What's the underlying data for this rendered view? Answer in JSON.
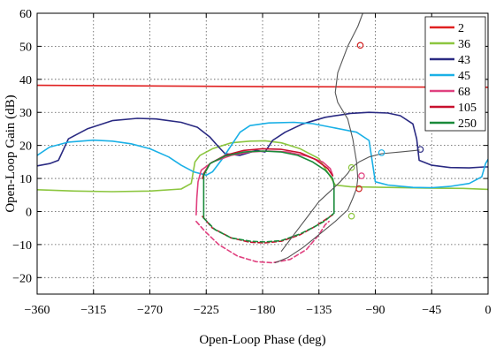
{
  "chart_data": {
    "type": "line",
    "title": "",
    "xlabel": "Open-Loop Phase (deg)",
    "ylabel": "Open-Loop Gain (dB)",
    "xlim": [
      -360,
      0
    ],
    "ylim": [
      -25,
      60
    ],
    "xticks": [
      -360,
      -315,
      -270,
      -225,
      -180,
      -135,
      -90,
      -45,
      0
    ],
    "yticks": [
      -20,
      -10,
      0,
      10,
      20,
      30,
      40,
      50,
      60
    ],
    "xtick_labels": [
      "−360",
      "−315",
      "−270",
      "−225",
      "−180",
      "−135",
      "−90",
      "−45",
      "0"
    ],
    "ytick_labels": [
      "−20",
      "−10",
      "0",
      "10",
      "20",
      "30",
      "40",
      "50",
      "60"
    ],
    "grid": true,
    "legend": {
      "position": "top-right"
    },
    "series": [
      {
        "name": "2",
        "color": "#e02020",
        "width": 1.6,
        "segments": [
          [
            [
              -360,
              38.2
            ],
            [
              -270,
              38.0
            ],
            [
              -180,
              37.8
            ],
            [
              -90,
              37.7
            ],
            [
              0,
              37.6
            ]
          ]
        ]
      },
      {
        "name": "36",
        "color": "#8cc63f",
        "width": 1.6,
        "segments": [
          [
            [
              -360,
              6.6
            ],
            [
              -330,
              6.2
            ],
            [
              -300,
              6.0
            ],
            [
              -270,
              6.2
            ],
            [
              -245,
              6.8
            ],
            [
              -237,
              8.5
            ],
            [
              -234,
              15.0
            ],
            [
              -230,
              17.0
            ],
            [
              -220,
              19.0
            ],
            [
              -205,
              20.8
            ],
            [
              -190,
              21.3
            ],
            [
              -178,
              21.4
            ],
            [
              -165,
              20.8
            ],
            [
              -150,
              19.0
            ],
            [
              -135,
              16.0
            ],
            [
              -125,
              10.0
            ],
            [
              -122,
              8.0
            ],
            [
              -110,
              7.5
            ],
            [
              -80,
              7.3
            ],
            [
              -50,
              7.1
            ],
            [
              -20,
              7.0
            ],
            [
              0,
              6.7
            ]
          ]
        ]
      },
      {
        "name": "43",
        "color": "#2a2a82",
        "width": 1.6,
        "segments": [
          [
            [
              -360,
              13.8
            ],
            [
              -350,
              14.5
            ],
            [
              -343,
              15.5
            ],
            [
              -335,
              22.0
            ],
            [
              -320,
              25.0
            ],
            [
              -300,
              27.5
            ],
            [
              -280,
              28.2
            ],
            [
              -265,
              28.0
            ],
            [
              -245,
              27.0
            ],
            [
              -232,
              25.5
            ],
            [
              -222,
              22.5
            ],
            [
              -215,
              19.5
            ],
            [
              -210,
              17.5
            ],
            [
              -198,
              17.0
            ],
            [
              -185,
              18.5
            ],
            [
              -178,
              18.0
            ],
            [
              -172,
              21.5
            ],
            [
              -162,
              24.0
            ],
            [
              -148,
              26.5
            ],
            [
              -130,
              28.5
            ],
            [
              -110,
              29.7
            ],
            [
              -95,
              30.0
            ],
            [
              -80,
              29.8
            ],
            [
              -70,
              29.0
            ],
            [
              -60,
              26.5
            ],
            [
              -57,
              22.0
            ],
            [
              -55,
              15.5
            ],
            [
              -45,
              14.0
            ],
            [
              -30,
              13.3
            ],
            [
              -15,
              13.2
            ],
            [
              -3,
              13.5
            ],
            [
              0,
              13.5
            ]
          ]
        ]
      },
      {
        "name": "45",
        "color": "#1ab0e6",
        "width": 1.6,
        "segments": [
          [
            [
              -360,
              17.0
            ],
            [
              -350,
              19.5
            ],
            [
              -335,
              21.0
            ],
            [
              -315,
              21.6
            ],
            [
              -300,
              21.3
            ],
            [
              -285,
              20.5
            ],
            [
              -270,
              19.0
            ],
            [
              -255,
              16.5
            ],
            [
              -245,
              14.0
            ],
            [
              -235,
              12.0
            ],
            [
              -225,
              11.0
            ],
            [
              -220,
              12.0
            ],
            [
              -212,
              16.0
            ],
            [
              -205,
              20.0
            ],
            [
              -198,
              24.0
            ],
            [
              -190,
              26.0
            ],
            [
              -175,
              26.8
            ],
            [
              -155,
              27.0
            ],
            [
              -140,
              26.6
            ],
            [
              -125,
              25.5
            ],
            [
              -105,
              24.0
            ],
            [
              -95,
              21.5
            ],
            [
              -90,
              9.0
            ],
            [
              -80,
              8.0
            ],
            [
              -60,
              7.3
            ],
            [
              -45,
              7.2
            ],
            [
              -30,
              7.6
            ],
            [
              -15,
              8.5
            ],
            [
              -5,
              10.5
            ],
            [
              -2,
              14.5
            ],
            [
              0,
              15.8
            ]
          ]
        ]
      },
      {
        "name": "68",
        "color": "#e0407f",
        "width": 1.6,
        "segments": [
          [
            [
              -233,
              -1.0
            ],
            [
              -232.5,
              4.0
            ],
            [
              -231.5,
              9.0
            ],
            [
              -229,
              12.5
            ],
            [
              -220,
              15.0
            ],
            [
              -205,
              17.0
            ],
            [
              -190,
              18.0
            ],
            [
              -175,
              18.3
            ],
            [
              -160,
              18.0
            ],
            [
              -145,
              16.8
            ],
            [
              -132,
              15.0
            ],
            [
              -126,
              13.0
            ],
            [
              -124,
              11.0
            ]
          ],
          [
            [
              -233,
              -3.0
            ],
            [
              -226,
              -6.0
            ],
            [
              -215,
              -10.0
            ],
            [
              -200,
              -13.5
            ],
            [
              -185,
              -15.2
            ],
            [
              -172,
              -15.5
            ],
            [
              -158,
              -14.5
            ],
            [
              -145,
              -11.5
            ],
            [
              -135,
              -7.0
            ],
            [
              -130,
              -4.0
            ],
            [
              -127,
              -3.0
            ]
          ]
        ]
      },
      {
        "name": "105",
        "color": "#c8102e",
        "width": 1.6,
        "segments": [
          [
            [
              -228,
              10.0
            ],
            [
              -227,
              11.5
            ],
            [
              -222,
              14.5
            ],
            [
              -210,
              17.0
            ],
            [
              -195,
              18.5
            ],
            [
              -180,
              19.0
            ],
            [
              -165,
              18.8
            ],
            [
              -150,
              17.8
            ],
            [
              -138,
              15.8
            ],
            [
              -128,
              13.0
            ],
            [
              -124,
              10.8
            ]
          ],
          [
            [
              -228,
              -1.5
            ],
            [
              -220,
              -5.0
            ],
            [
              -205,
              -8.0
            ],
            [
              -190,
              -9.3
            ],
            [
              -178,
              -9.5
            ],
            [
              -165,
              -9.0
            ],
            [
              -150,
              -7.0
            ],
            [
              -138,
              -4.5
            ],
            [
              -130,
              -2.5
            ],
            [
              -124,
              -1.0
            ]
          ]
        ]
      },
      {
        "name": "250",
        "color": "#1a8a3a",
        "width": 1.6,
        "segments": [
          [
            [
              -227,
              -2.0
            ],
            [
              -227,
              11.0
            ],
            [
              -222,
              14.5
            ],
            [
              -210,
              16.8
            ],
            [
              -195,
              18.0
            ],
            [
              -180,
              18.3
            ],
            [
              -165,
              18.0
            ],
            [
              -152,
              17.0
            ],
            [
              -140,
              15.0
            ],
            [
              -130,
              12.5
            ],
            [
              -124,
              10.0
            ],
            [
              -123,
              8.0
            ],
            [
              -123,
              -0.5
            ]
          ],
          [
            [
              -227,
              -2.0
            ],
            [
              -218,
              -5.5
            ],
            [
              -205,
              -8.0
            ],
            [
              -190,
              -9.0
            ],
            [
              -178,
              -9.2
            ],
            [
              -165,
              -8.8
            ],
            [
              -150,
              -6.8
            ],
            [
              -138,
              -4.5
            ],
            [
              -130,
              -2.8
            ],
            [
              -123,
              -0.5
            ]
          ]
        ]
      },
      {
        "name": "",
        "color": "#555555",
        "width": 1.1,
        "legend": false,
        "segments": [
          [
            [
              -170,
              -15.5
            ],
            [
              -160,
              -14.0
            ],
            [
              -148,
              -11.0
            ],
            [
              -135,
              -7.0
            ],
            [
              -122,
              -3.0
            ],
            [
              -112,
              0.5
            ],
            [
              -108,
              4.0
            ],
            [
              -105,
              7.0
            ],
            [
              -104,
              10.0
            ],
            [
              -105,
              15.0
            ],
            [
              -108,
              22.0
            ],
            [
              -112,
              28.0
            ],
            [
              -120,
              33.0
            ],
            [
              -122,
              36.0
            ],
            [
              -120,
              42.0
            ],
            [
              -112,
              50.0
            ],
            [
              -104,
              56.0
            ],
            [
              -100,
              60.0
            ]
          ],
          [
            [
              -165,
              -12.0
            ],
            [
              -155,
              -7.0
            ],
            [
              -145,
              -2.0
            ],
            [
              -135,
              3.0
            ],
            [
              -125,
              6.5
            ],
            [
              -118,
              9.0
            ],
            [
              -112,
              11.5
            ],
            [
              -109,
              13.3
            ],
            [
              -103,
              15.0
            ],
            [
              -95,
              16.5
            ],
            [
              -85,
              17.5
            ],
            [
              -70,
              18.0
            ],
            [
              -55,
              18.6
            ]
          ]
        ]
      }
    ],
    "markers": [
      {
        "x": -102,
        "y": 50.3,
        "color": "#d02020"
      },
      {
        "x": -103,
        "y": 6.9,
        "color": "#d02020"
      },
      {
        "x": -101,
        "y": 10.8,
        "color": "#e0407f"
      },
      {
        "x": -109,
        "y": -1.4,
        "color": "#8cc63f"
      },
      {
        "x": -109,
        "y": 13.3,
        "color": "#8cc63f"
      },
      {
        "x": -85,
        "y": 17.8,
        "color": "#1ab0e6"
      },
      {
        "x": -54,
        "y": 18.8,
        "color": "#2a2a82"
      }
    ]
  }
}
